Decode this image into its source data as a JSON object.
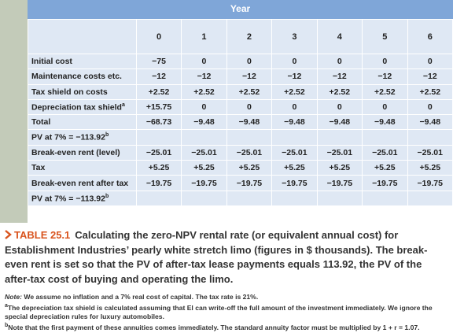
{
  "table": {
    "header": "Year",
    "columns": [
      "0",
      "1",
      "2",
      "3",
      "4",
      "5",
      "6"
    ],
    "rows": [
      {
        "label": "Initial cost",
        "cells": [
          "−75",
          "0",
          "0",
          "0",
          "0",
          "0",
          "0"
        ]
      },
      {
        "label": "Maintenance costs etc.",
        "cells": [
          "−12",
          "−12",
          "−12",
          "−12",
          "−12",
          "−12",
          "−12"
        ]
      },
      {
        "label": "Tax shield on costs",
        "cells": [
          "+2.52",
          "+2.52",
          "+2.52",
          "+2.52",
          "+2.52",
          "+2.52",
          "+2.52"
        ]
      },
      {
        "label": "Depreciation tax shield",
        "mark": "a",
        "cells": [
          "+15.75",
          "0",
          "0",
          "0",
          "0",
          "0",
          "0"
        ]
      },
      {
        "label": "Total",
        "cells": [
          "−68.73",
          "−9.48",
          "−9.48",
          "−9.48",
          "−9.48",
          "−9.48",
          "−9.48"
        ]
      },
      {
        "label": "PV at 7% = −113.92",
        "mark": "b",
        "cells": []
      },
      {
        "label": "Break-even rent (level)",
        "cells": [
          "−25.01",
          "−25.01",
          "−25.01",
          "−25.01",
          "−25.01",
          "−25.01",
          "−25.01"
        ]
      },
      {
        "label": "Tax",
        "cells": [
          "+5.25",
          "+5.25",
          "+5.25",
          "+5.25",
          "+5.25",
          "+5.25",
          "+5.25"
        ]
      },
      {
        "label": "Break-even rent after tax",
        "cells": [
          "−19.75",
          "−19.75",
          "−19.75",
          "−19.75",
          "−19.75",
          "−19.75",
          "−19.75"
        ]
      },
      {
        "label": "PV at 7% = −113.92",
        "mark": "b",
        "cells": []
      }
    ]
  },
  "caption": {
    "label": "TABLE 25.1",
    "text": "Calculating the zero-NPV rental rate (or equivalent annual cost) for Establishment Industries’ pearly white stretch limo (figures in $ thousands). The break-even rent is set so that the PV of after-tax lease payments equals 113.92, the PV of the after-tax cost of buying and operating the limo."
  },
  "notes": {
    "lead": "Note:",
    "text": "We assume no inflation and a 7% real cost of capital. The tax rate is 21%.",
    "footnotes": [
      {
        "mark": "a",
        "text": "The depreciation tax shield is calculated assuming that El can write-off the full amount of the investment immediately. We ignore the special depreciation rules for luxury automobiles."
      },
      {
        "mark": "b",
        "text": "Note that the first payment of these annuities comes immediately. The standard annuity factor must be multiplied by 1 + r = 1.07."
      }
    ]
  }
}
